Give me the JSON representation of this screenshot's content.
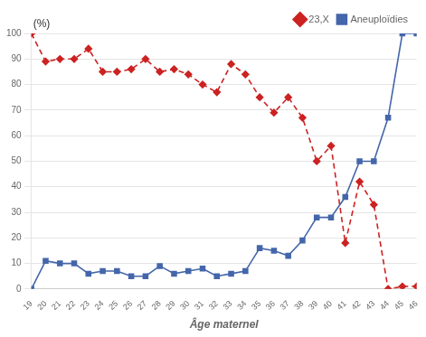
{
  "chart_data": {
    "type": "line",
    "xlabel": "Âge maternel",
    "annotation": "(%)",
    "x": [
      19,
      20,
      21,
      22,
      23,
      24,
      25,
      26,
      27,
      28,
      29,
      30,
      31,
      32,
      33,
      34,
      35,
      36,
      37,
      38,
      39,
      40,
      41,
      42,
      43,
      44,
      45,
      46
    ],
    "series": [
      {
        "name": "23,X",
        "color": "#cc2222",
        "marker": "diamond",
        "line_style": "dashed",
        "values": [
          100,
          89,
          90,
          90,
          94,
          85,
          85,
          86,
          90,
          85,
          86,
          84,
          80,
          77,
          88,
          84,
          75,
          69,
          75,
          67,
          50,
          56,
          18,
          42,
          33,
          0,
          1,
          1
        ]
      },
      {
        "name": "Aneuploïdies",
        "color": "#4466aa",
        "marker": "square",
        "line_style": "solid",
        "values": [
          0,
          11,
          10,
          10,
          6,
          7,
          7,
          5,
          5,
          9,
          6,
          7,
          8,
          5,
          6,
          7,
          16,
          15,
          13,
          19,
          28,
          28,
          36,
          50,
          50,
          67,
          100,
          100
        ]
      }
    ],
    "xlim": [
      19,
      46
    ],
    "xticks": [
      19,
      20,
      21,
      22,
      23,
      24,
      25,
      26,
      27,
      28,
      29,
      30,
      31,
      32,
      33,
      34,
      35,
      36,
      37,
      38,
      39,
      40,
      41,
      42,
      43,
      44,
      45,
      46
    ],
    "ylim": [
      0,
      100
    ],
    "yticks": [
      0,
      10,
      20,
      30,
      40,
      50,
      60,
      70,
      80,
      90,
      100
    ],
    "grid": true,
    "legend": "upper right"
  }
}
